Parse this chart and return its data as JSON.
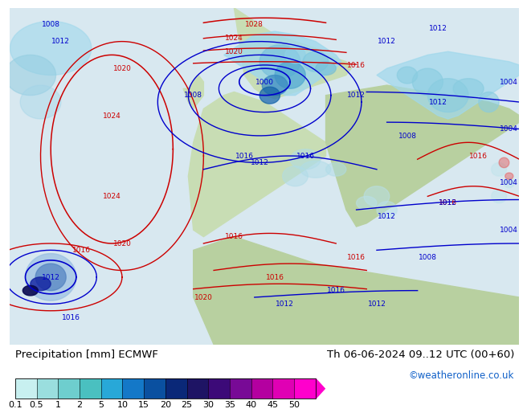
{
  "title_left": "Precipitation [mm] ECMWF",
  "title_right": "Th 06-06-2024 09..12 UTC (00+60)",
  "credit": "©weatheronline.co.uk",
  "colorbar_levels": [
    0.1,
    0.5,
    1,
    2,
    5,
    10,
    15,
    20,
    25,
    30,
    35,
    40,
    45,
    50
  ],
  "colorbar_colors": [
    "#c8f0f0",
    "#9adede",
    "#6ecece",
    "#4ac0c0",
    "#28a8d8",
    "#1478c8",
    "#0a50a0",
    "#0a2878",
    "#1e1464",
    "#3c0a78",
    "#780a96",
    "#b400a0",
    "#e000b4",
    "#ff00cc"
  ],
  "map_sea_color": "#d8e8f0",
  "map_land_color": "#c8ddb4",
  "map_land_color2": "#b8d0a0",
  "legend_bg": "#ffffff",
  "label_fontsize": 9.5,
  "credit_fontsize": 8.5,
  "colorbar_label_fontsize": 8.0,
  "isobar_red": "#cc0000",
  "isobar_blue": "#0000cc",
  "prec_light": "#a0d8ec",
  "prec_cyan": "#78c8e0",
  "prec_dark_blue": "#1464b4",
  "prec_navy": "#0a1e78"
}
